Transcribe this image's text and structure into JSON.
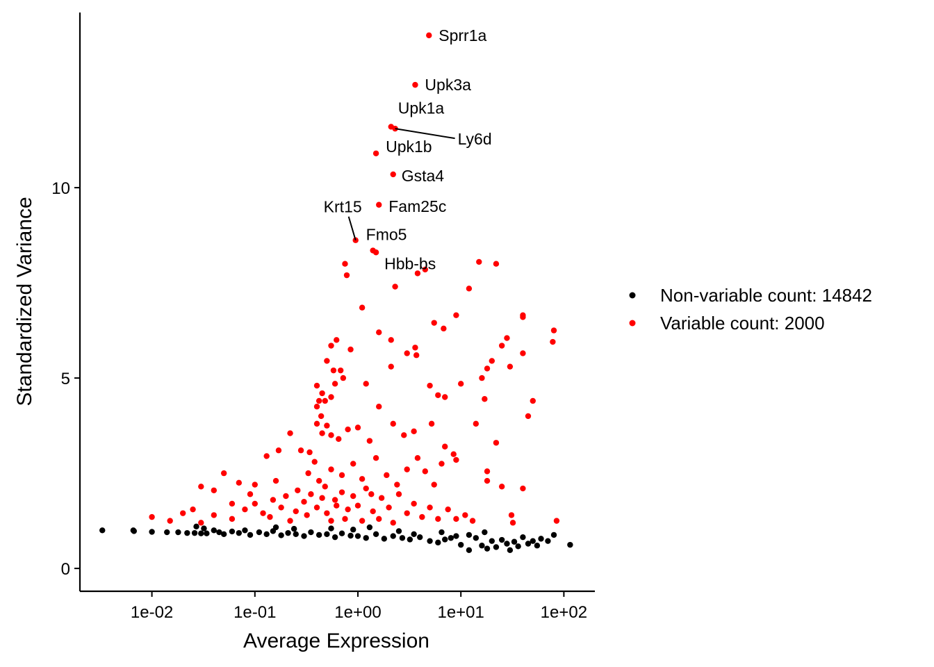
{
  "chart_data": {
    "type": "scatter",
    "title": "",
    "xlabel": "Average Expression",
    "ylabel": "Standardized Variance",
    "x_scale": "log10",
    "xlim": [
      0.002,
      200
    ],
    "ylim": [
      -0.6,
      14.6
    ],
    "x_ticks": [
      {
        "value": 0.01,
        "label": "1e-02"
      },
      {
        "value": 0.1,
        "label": "1e-01"
      },
      {
        "value": 1,
        "label": "1e+00"
      },
      {
        "value": 10,
        "label": "1e+01"
      },
      {
        "value": 100,
        "label": "1e+02"
      }
    ],
    "y_ticks": [
      {
        "value": 0,
        "label": "0"
      },
      {
        "value": 5,
        "label": "5"
      },
      {
        "value": 10,
        "label": "10"
      }
    ],
    "grid": false,
    "legend": {
      "placement": "right",
      "entries": [
        {
          "label": "Non-variable count: 14842",
          "color": "#000000"
        },
        {
          "label": "Variable count: 2000",
          "color": "#ff0000"
        }
      ]
    },
    "series": [
      {
        "name": "Non-variable count: 14842",
        "color": "#000000",
        "points": [
          [
            0.0033,
            1.0
          ],
          [
            0.0066,
            1.0
          ],
          [
            0.0067,
            0.98
          ],
          [
            0.01,
            0.96
          ],
          [
            0.014,
            0.95
          ],
          [
            0.018,
            0.95
          ],
          [
            0.022,
            0.93
          ],
          [
            0.026,
            0.93
          ],
          [
            0.03,
            0.92
          ],
          [
            0.034,
            0.92
          ],
          [
            0.027,
            1.1
          ],
          [
            0.032,
            1.05
          ],
          [
            0.04,
            1.0
          ],
          [
            0.045,
            0.95
          ],
          [
            0.05,
            0.9
          ],
          [
            0.06,
            0.97
          ],
          [
            0.07,
            0.93
          ],
          [
            0.08,
            1.0
          ],
          [
            0.09,
            0.88
          ],
          [
            0.11,
            0.95
          ],
          [
            0.13,
            0.9
          ],
          [
            0.15,
            0.98
          ],
          [
            0.18,
            0.87
          ],
          [
            0.21,
            0.93
          ],
          [
            0.25,
            0.9
          ],
          [
            0.3,
            0.85
          ],
          [
            0.35,
            0.95
          ],
          [
            0.42,
            0.88
          ],
          [
            0.5,
            0.9
          ],
          [
            0.6,
            0.82
          ],
          [
            0.7,
            0.92
          ],
          [
            0.85,
            0.86
          ],
          [
            1.0,
            0.85
          ],
          [
            1.2,
            0.8
          ],
          [
            1.5,
            0.9
          ],
          [
            1.8,
            0.78
          ],
          [
            2.2,
            0.85
          ],
          [
            2.7,
            0.8
          ],
          [
            3.2,
            0.76
          ],
          [
            4.0,
            0.82
          ],
          [
            5.0,
            0.72
          ],
          [
            6.0,
            0.68
          ],
          [
            7.0,
            0.76
          ],
          [
            8.0,
            0.8
          ],
          [
            9.0,
            0.85
          ],
          [
            10.0,
            0.62
          ],
          [
            12.0,
            0.48
          ],
          [
            14.0,
            0.8
          ],
          [
            16.0,
            0.6
          ],
          [
            18.0,
            0.52
          ],
          [
            20.0,
            0.72
          ],
          [
            22.0,
            0.56
          ],
          [
            25.0,
            0.75
          ],
          [
            28.0,
            0.65
          ],
          [
            30.0,
            0.48
          ],
          [
            33.0,
            0.7
          ],
          [
            36.0,
            0.58
          ],
          [
            40.0,
            0.82
          ],
          [
            45.0,
            0.65
          ],
          [
            50.0,
            0.72
          ],
          [
            55.0,
            0.6
          ],
          [
            60.0,
            0.78
          ],
          [
            70.0,
            0.72
          ],
          [
            80.0,
            0.88
          ],
          [
            115.0,
            0.62
          ],
          [
            2.5,
            0.98
          ],
          [
            3.5,
            0.9
          ],
          [
            6.5,
            0.95
          ],
          [
            12.0,
            0.88
          ],
          [
            17.0,
            0.95
          ],
          [
            0.16,
            1.08
          ],
          [
            0.24,
            1.04
          ],
          [
            0.55,
            1.05
          ],
          [
            0.9,
            1.02
          ],
          [
            1.3,
            1.08
          ]
        ]
      },
      {
        "name": "Variable count: 2000",
        "color": "#ff0000",
        "points": [
          [
            4.9,
            14.0
          ],
          [
            3.6,
            12.7
          ],
          [
            2.1,
            11.6
          ],
          [
            2.3,
            11.55
          ],
          [
            1.5,
            10.9
          ],
          [
            2.2,
            10.35
          ],
          [
            1.6,
            9.55
          ],
          [
            0.95,
            8.62
          ],
          [
            1.4,
            8.35
          ],
          [
            1.5,
            8.3
          ],
          [
            0.75,
            8.0
          ],
          [
            0.78,
            7.7
          ],
          [
            3.8,
            7.75
          ],
          [
            4.5,
            7.85
          ],
          [
            2.3,
            7.4
          ],
          [
            15.0,
            8.05
          ],
          [
            22.0,
            8.0
          ],
          [
            12.0,
            7.35
          ],
          [
            1.1,
            6.85
          ],
          [
            9.0,
            6.65
          ],
          [
            5.5,
            6.45
          ],
          [
            6.8,
            6.3
          ],
          [
            40.0,
            6.65
          ],
          [
            40.0,
            6.6
          ],
          [
            80.0,
            6.25
          ],
          [
            78.0,
            5.95
          ],
          [
            28.0,
            6.05
          ],
          [
            25.0,
            5.85
          ],
          [
            1.6,
            6.2
          ],
          [
            2.1,
            6.0
          ],
          [
            3.6,
            5.8
          ],
          [
            3.7,
            5.6
          ],
          [
            3.0,
            5.65
          ],
          [
            2.1,
            5.3
          ],
          [
            0.62,
            6.0
          ],
          [
            0.55,
            5.85
          ],
          [
            0.85,
            5.75
          ],
          [
            0.5,
            5.45
          ],
          [
            0.58,
            5.2
          ],
          [
            0.68,
            5.2
          ],
          [
            0.72,
            5.0
          ],
          [
            0.6,
            4.85
          ],
          [
            0.4,
            4.8
          ],
          [
            0.45,
            4.6
          ],
          [
            0.42,
            4.4
          ],
          [
            0.48,
            4.4
          ],
          [
            0.55,
            4.5
          ],
          [
            1.2,
            4.85
          ],
          [
            5.0,
            4.8
          ],
          [
            6.0,
            4.55
          ],
          [
            7.0,
            4.5
          ],
          [
            10.0,
            4.85
          ],
          [
            18.0,
            5.25
          ],
          [
            16.0,
            5.0
          ],
          [
            20.0,
            5.45
          ],
          [
            30.0,
            5.3
          ],
          [
            40.0,
            5.65
          ],
          [
            50.0,
            4.4
          ],
          [
            45.0,
            4.0
          ],
          [
            17.0,
            4.45
          ],
          [
            14.0,
            3.8
          ],
          [
            22.0,
            3.3
          ],
          [
            1.6,
            4.25
          ],
          [
            0.4,
            4.25
          ],
          [
            0.44,
            4.0
          ],
          [
            0.4,
            3.8
          ],
          [
            0.5,
            3.75
          ],
          [
            0.45,
            3.55
          ],
          [
            0.55,
            3.5
          ],
          [
            0.65,
            3.4
          ],
          [
            0.8,
            3.65
          ],
          [
            1.0,
            3.7
          ],
          [
            1.3,
            3.35
          ],
          [
            2.2,
            3.8
          ],
          [
            2.8,
            3.5
          ],
          [
            3.5,
            3.6
          ],
          [
            5.2,
            3.8
          ],
          [
            7.0,
            3.2
          ],
          [
            8.5,
            3.0
          ],
          [
            9.0,
            2.85
          ],
          [
            18.0,
            2.55
          ],
          [
            18.0,
            2.3
          ],
          [
            25.0,
            2.15
          ],
          [
            40.0,
            2.1
          ],
          [
            31.0,
            1.4
          ],
          [
            32.0,
            1.2
          ],
          [
            85.0,
            1.25
          ],
          [
            0.01,
            1.35
          ],
          [
            0.015,
            1.25
          ],
          [
            0.02,
            1.45
          ],
          [
            0.025,
            1.55
          ],
          [
            0.03,
            2.15
          ],
          [
            0.04,
            2.05
          ],
          [
            0.05,
            2.5
          ],
          [
            0.07,
            2.25
          ],
          [
            0.1,
            2.2
          ],
          [
            0.13,
            2.95
          ],
          [
            0.17,
            3.1
          ],
          [
            0.22,
            3.55
          ],
          [
            0.28,
            3.1
          ],
          [
            0.34,
            3.05
          ],
          [
            0.38,
            2.8
          ],
          [
            0.33,
            2.5
          ],
          [
            0.42,
            2.3
          ],
          [
            0.55,
            2.6
          ],
          [
            0.7,
            2.45
          ],
          [
            0.9,
            2.75
          ],
          [
            1.1,
            2.35
          ],
          [
            1.5,
            2.9
          ],
          [
            1.9,
            2.45
          ],
          [
            2.4,
            2.2
          ],
          [
            3.0,
            2.6
          ],
          [
            3.8,
            2.9
          ],
          [
            4.5,
            2.55
          ],
          [
            5.5,
            2.2
          ],
          [
            6.5,
            2.75
          ],
          [
            0.03,
            1.2
          ],
          [
            0.04,
            1.4
          ],
          [
            0.06,
            1.3
          ],
          [
            0.08,
            1.55
          ],
          [
            0.1,
            1.7
          ],
          [
            0.12,
            1.45
          ],
          [
            0.15,
            1.8
          ],
          [
            0.18,
            1.6
          ],
          [
            0.2,
            1.9
          ],
          [
            0.25,
            1.5
          ],
          [
            0.3,
            1.75
          ],
          [
            0.35,
            1.95
          ],
          [
            0.4,
            1.6
          ],
          [
            0.45,
            1.85
          ],
          [
            0.5,
            1.45
          ],
          [
            0.6,
            1.8
          ],
          [
            0.7,
            2.0
          ],
          [
            0.8,
            1.55
          ],
          [
            0.9,
            1.9
          ],
          [
            1.0,
            1.65
          ],
          [
            1.2,
            2.1
          ],
          [
            1.4,
            1.5
          ],
          [
            1.7,
            1.85
          ],
          [
            2.0,
            1.6
          ],
          [
            2.5,
            1.95
          ],
          [
            3.0,
            1.45
          ],
          [
            3.5,
            1.7
          ],
          [
            4.2,
            1.35
          ],
          [
            5.0,
            1.6
          ],
          [
            6.0,
            1.3
          ],
          [
            7.5,
            1.55
          ],
          [
            9.0,
            1.3
          ],
          [
            11.0,
            1.4
          ],
          [
            13.0,
            1.25
          ],
          [
            0.06,
            1.7
          ],
          [
            0.09,
            1.95
          ],
          [
            0.14,
            1.35
          ],
          [
            0.22,
            1.25
          ],
          [
            0.32,
            1.4
          ],
          [
            0.55,
            1.25
          ],
          [
            0.75,
            1.3
          ],
          [
            1.1,
            1.25
          ],
          [
            1.6,
            1.3
          ],
          [
            2.2,
            1.2
          ],
          [
            0.16,
            2.3
          ],
          [
            0.26,
            2.05
          ],
          [
            0.48,
            2.15
          ],
          [
            0.62,
            1.65
          ],
          [
            1.35,
            1.95
          ]
        ]
      }
    ],
    "annotations": [
      {
        "text": "Sprr1a",
        "x": 4.9,
        "y": 14.0
      },
      {
        "text": "Upk3a",
        "x": 3.6,
        "y": 12.7
      },
      {
        "text": "Upk1a",
        "x": 2.1,
        "y": 11.6
      },
      {
        "text": "Ly6d",
        "x": 2.3,
        "y": 11.55
      },
      {
        "text": "Upk1b",
        "x": 1.5,
        "y": 10.9
      },
      {
        "text": "Gsta4",
        "x": 2.2,
        "y": 10.35
      },
      {
        "text": "Fam25c",
        "x": 1.6,
        "y": 9.55
      },
      {
        "text": "Krt15",
        "x": 0.95,
        "y": 8.62
      },
      {
        "text": "Fmo5",
        "x": 1.4,
        "y": 8.35
      },
      {
        "text": "Hbb-bs",
        "x": 1.5,
        "y": 8.3
      }
    ]
  }
}
